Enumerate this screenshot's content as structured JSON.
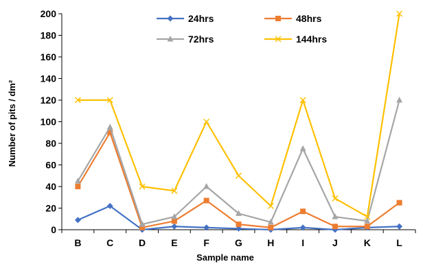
{
  "chart_data": {
    "type": "line",
    "categories": [
      "B",
      "C",
      "D",
      "E",
      "F",
      "G",
      "H",
      "I",
      "J",
      "K",
      "L"
    ],
    "xlabel": "Sample name",
    "ylabel": "Number of pits / dm²",
    "ylim": [
      0,
      200
    ],
    "yticks": [
      0,
      20,
      40,
      60,
      80,
      100,
      120,
      140,
      160,
      180,
      200
    ],
    "grid": false,
    "legend_position": "top",
    "series": [
      {
        "name": "24hrs",
        "color": "#4472C4",
        "marker": "diamond",
        "values": [
          9,
          22,
          0,
          3,
          2,
          1,
          0,
          2,
          0,
          2,
          3
        ]
      },
      {
        "name": "48hrs",
        "color": "#ED7D31",
        "marker": "square",
        "values": [
          40,
          90,
          2,
          8,
          27,
          5,
          2,
          17,
          3,
          3,
          25
        ]
      },
      {
        "name": "72hrs",
        "color": "#A5A5A5",
        "marker": "triangle",
        "values": [
          45,
          95,
          5,
          12,
          40,
          15,
          7,
          75,
          12,
          8,
          120
        ]
      },
      {
        "name": "144hrs",
        "color": "#FFC000",
        "marker": "x",
        "values": [
          120,
          120,
          40,
          36,
          100,
          50,
          22,
          120,
          29,
          12,
          200
        ]
      }
    ]
  }
}
